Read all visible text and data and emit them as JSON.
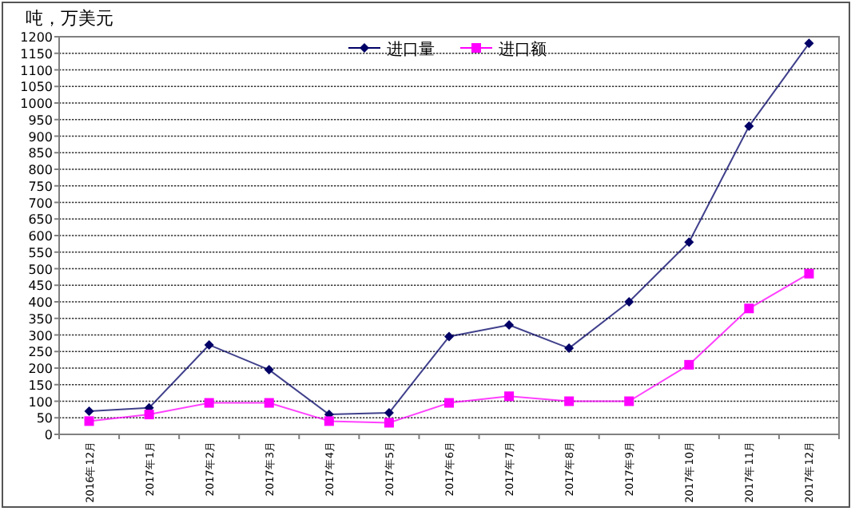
{
  "chart_data": {
    "type": "line",
    "ylabel": "吨，万美元",
    "categories": [
      "2016年12月",
      "2017年1月",
      "2017年2月",
      "2017年3月",
      "2017年4月",
      "2017年5月",
      "2017年6月",
      "2017年7月",
      "2017年8月",
      "2017年9月",
      "2017年10月",
      "2017年11月",
      "2017年12月"
    ],
    "series": [
      {
        "name": "进口量",
        "color": "#000066",
        "marker": "diamond",
        "values": [
          70,
          80,
          270,
          195,
          60,
          65,
          295,
          330,
          260,
          400,
          580,
          930,
          1180
        ]
      },
      {
        "name": "进口额",
        "color": "#ff00ff",
        "marker": "square",
        "values": [
          40,
          60,
          95,
          95,
          40,
          35,
          95,
          115,
          100,
          100,
          210,
          380,
          485
        ]
      }
    ],
    "ylim": [
      0,
      1200
    ],
    "yticks": [
      0,
      50,
      100,
      150,
      200,
      250,
      300,
      350,
      400,
      450,
      500,
      550,
      600,
      650,
      700,
      750,
      800,
      850,
      900,
      950,
      1000,
      1050,
      1100,
      1150,
      1200
    ],
    "grid": "y",
    "legend": "top"
  }
}
